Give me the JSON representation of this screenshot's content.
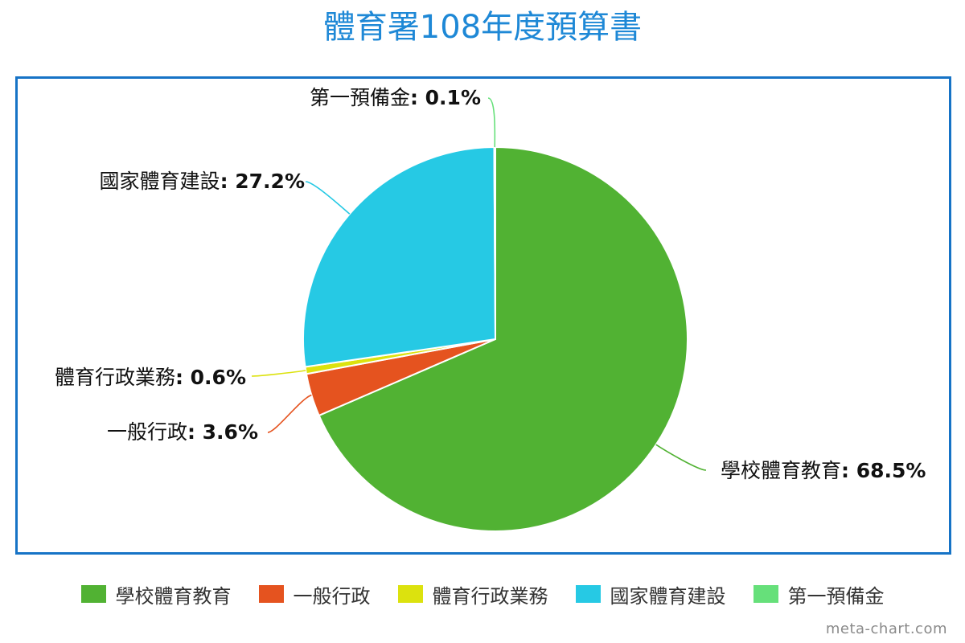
{
  "title": "體育署108年度預算書",
  "credit": "meta-chart.com",
  "chart_data": {
    "type": "pie",
    "title": "體育署108年度預算書",
    "slices": [
      {
        "label": "學校體育教育",
        "value": 68.5,
        "value_label": "68.5%",
        "color": "#51b233"
      },
      {
        "label": "一般行政",
        "value": 3.6,
        "value_label": "3.6%",
        "color": "#e5531f"
      },
      {
        "label": "體育行政業務",
        "value": 0.6,
        "value_label": "0.6%",
        "color": "#dce20e"
      },
      {
        "label": "國家體育建設",
        "value": 27.2,
        "value_label": "27.2%",
        "color": "#26c9e4"
      },
      {
        "label": "第一預備金",
        "value": 0.1,
        "value_label": "0.1%",
        "color": "#66e07a"
      }
    ],
    "legend_position": "bottom"
  }
}
